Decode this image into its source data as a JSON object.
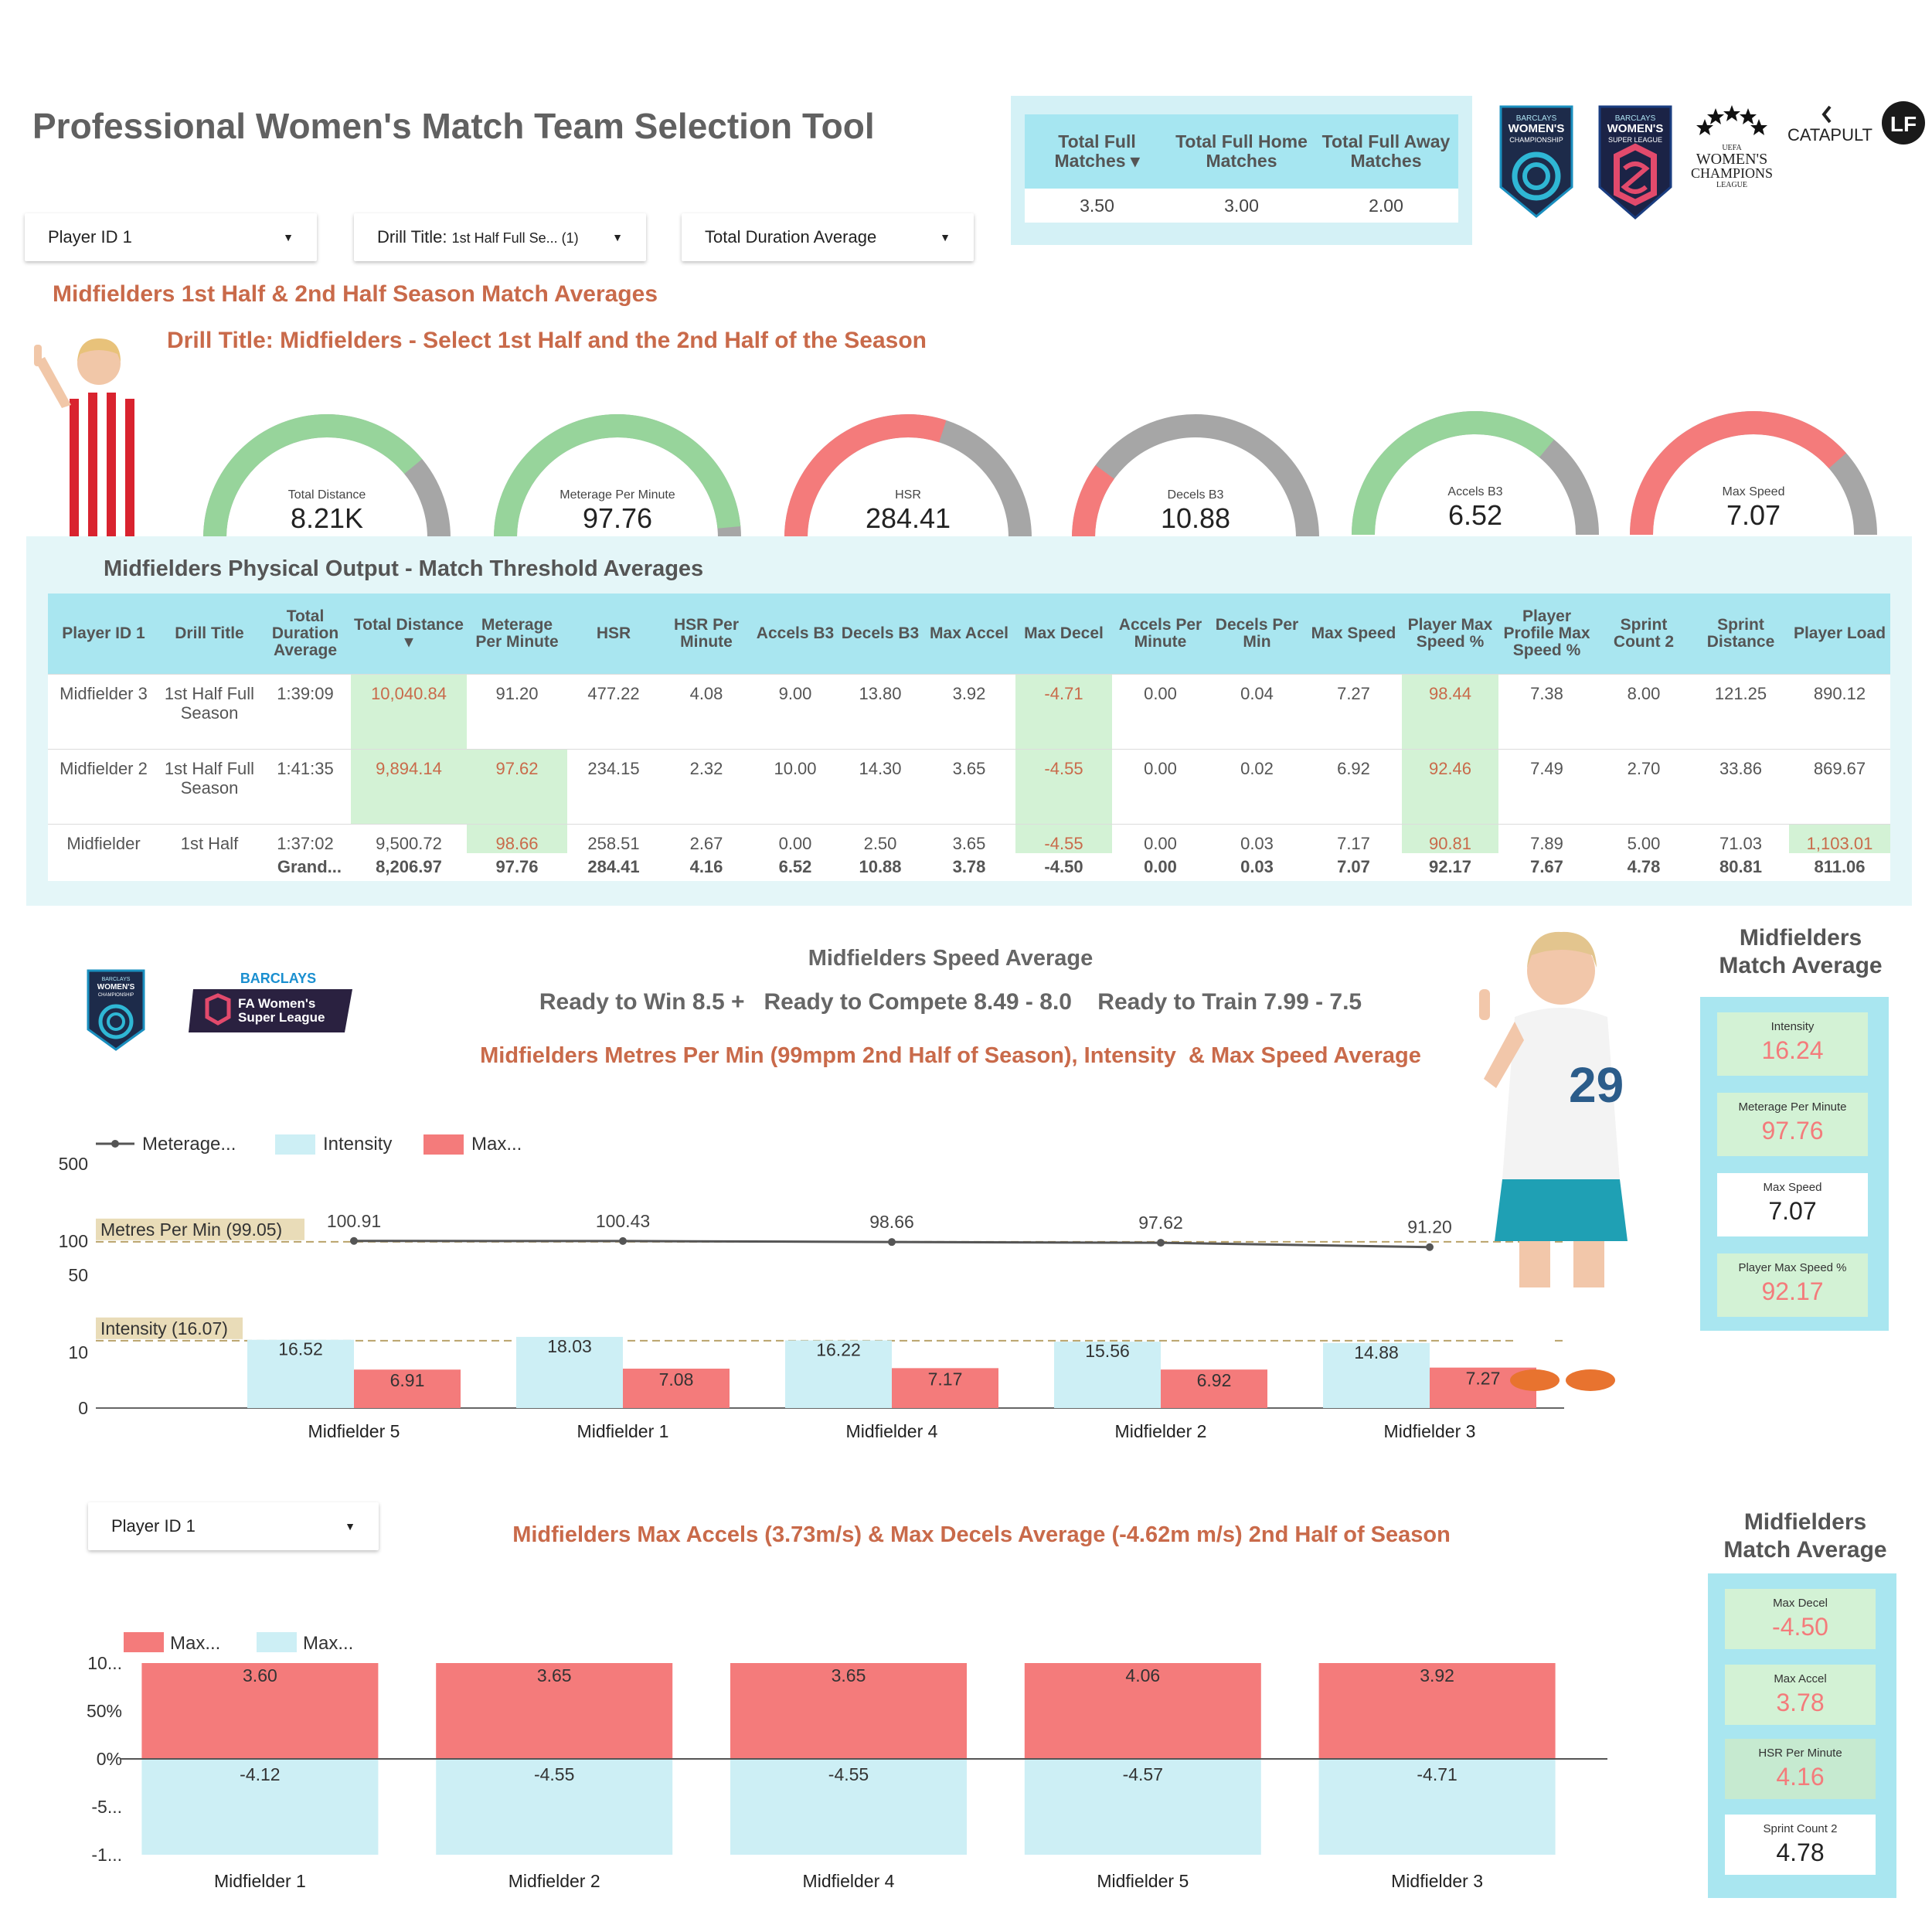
{
  "title": "Professional Women's Match Team Selection Tool",
  "filters": {
    "player": "Player ID 1",
    "drill_label": "Drill Title:",
    "drill_value": "1st Half Full Se... (1)",
    "metric": "Total Duration Average",
    "player2": "Player ID 1"
  },
  "kpis": {
    "headers": [
      "Total Full Matches ▾",
      "Total Full Home Matches",
      "Total Full Away Matches"
    ],
    "values": [
      "3.50",
      "3.00",
      "2.00"
    ]
  },
  "logos": {
    "wc_line1": "BARCLAYS",
    "wc_line2": "WOMEN'S",
    "wc_line3": "CHAMPIONSHIP",
    "wsl_line1": "BARCLAYS",
    "wsl_line2": "WOMEN'S",
    "wsl_line3": "SUPER LEAGUE",
    "ucl_line1": "UEFA",
    "ucl_line2": "WOMEN'S",
    "ucl_line3": "CHAMPIONS",
    "ucl_line4": "LEAGUE",
    "catapult": "CATAPULT",
    "lf": "LF",
    "barclays": "BARCLAYS",
    "fa_line1": "FA Women's",
    "fa_line2": "Super League"
  },
  "section_title": "Midfielders 1st Half & 2nd Half Season Match Averages",
  "drill_title": "Drill Title: Midfielders - Select 1st Half and the 2nd Half of the Season",
  "gauges": [
    {
      "label": "Total Distance",
      "value": "8.21K",
      "fraction": 0.78,
      "color": "#97d49b"
    },
    {
      "label": "Meterage Per Minute",
      "value": "97.76",
      "fraction": 0.97,
      "color": "#97d49b"
    },
    {
      "label": "HSR",
      "value": "284.41",
      "fraction": 0.6,
      "color": "#f47b7b"
    },
    {
      "label": "Decels B3",
      "value": "10.88",
      "fraction": 0.2,
      "color": "#f47b7b"
    },
    {
      "label": "Accels B3",
      "value": "6.52",
      "fraction": 0.72,
      "color": "#97d49b"
    },
    {
      "label": "Max Speed",
      "value": "7.07",
      "fraction": 0.77,
      "color": "#f47b7b"
    }
  ],
  "table": {
    "title": "Midfielders Physical Output - Match Threshold Averages",
    "headers": [
      "Player ID 1",
      "Drill Title",
      "Total Duration Average",
      "Total Distance ▾",
      "Meterage Per Minute",
      "HSR",
      "HSR Per Minute",
      "Accels B3",
      "Decels B3",
      "Max Accel",
      "Max Decel",
      "Accels Per Minute",
      "Decels Per Min",
      "Max Speed",
      "Player Max Speed %",
      "Player Profile Max Speed %",
      "Sprint Count 2",
      "Sprint Distance",
      "Player Load"
    ],
    "rows": [
      [
        "Midfielder 3",
        "1st Half Full Season",
        "1:39:09",
        "10,040.84",
        "91.20",
        "477.22",
        "4.08",
        "9.00",
        "13.80",
        "3.92",
        "-4.71",
        "0.00",
        "0.04",
        "7.27",
        "98.44",
        "7.38",
        "8.00",
        "121.25",
        "890.12"
      ],
      [
        "Midfielder 2",
        "1st Half Full Season",
        "1:41:35",
        "9,894.14",
        "97.62",
        "234.15",
        "2.32",
        "10.00",
        "14.30",
        "3.65",
        "-4.55",
        "0.00",
        "0.02",
        "6.92",
        "92.46",
        "7.49",
        "2.70",
        "33.86",
        "869.67"
      ],
      [
        "Midfielder",
        "1st Half",
        "1:37:02",
        "9,500.72",
        "98.66",
        "258.51",
        "2.67",
        "0.00",
        "2.50",
        "3.65",
        "-4.55",
        "0.00",
        "0.03",
        "7.17",
        "90.81",
        "7.89",
        "5.00",
        "71.03",
        "1,103.01"
      ]
    ],
    "grand_total": [
      "",
      "Grand...",
      "8,206.97",
      "97.76",
      "284.41",
      "4.16",
      "6.52",
      "10.88",
      "3.78",
      "-4.50",
      "0.00",
      "0.03",
      "7.07",
      "92.17",
      "7.67",
      "4.78",
      "80.81",
      "811.06"
    ]
  },
  "speed_section": {
    "title": "Midfielders Speed Average",
    "bands": "Ready to Win 8.5 +   Ready to Compete 8.49 - 8.0    Ready to Train 7.99 - 7.5",
    "subtitle": "Midfielders Metres Per Min (99mpm 2nd Half of Season), Intensity  & Max Speed Average",
    "player_number": "29"
  },
  "side1": {
    "title_line1": "Midfielders",
    "title_line2": "Match Average",
    "cards": [
      {
        "label": "Intensity",
        "value": "16.24"
      },
      {
        "label": "Meterage Per Minute",
        "value": "97.76"
      },
      {
        "label": "Max Speed",
        "value": "7.07"
      },
      {
        "label": "Player Max Speed %",
        "value": "92.17"
      }
    ]
  },
  "accel_section": {
    "title": "Midfielders Max Accels (3.73m/s) & Max Decels Average (-4.62m m/s) 2nd Half of Season"
  },
  "side2": {
    "title_line1": "Midfielders",
    "title_line2": "Match Average",
    "cards": [
      {
        "label": "Max Decel",
        "value": "-4.50"
      },
      {
        "label": "Max Accel",
        "value": "3.78"
      },
      {
        "label": "HSR Per Minute",
        "value": "4.16"
      },
      {
        "label": "Sprint Count 2",
        "value": "4.78"
      }
    ]
  },
  "chart_data": [
    {
      "type": "bar+line",
      "title": "Midfielders Metres Per Min (99mpm 2nd Half of Season), Intensity  & Max Speed Average",
      "categories": [
        "Midfielder 5",
        "Midfielder 1",
        "Midfielder 4",
        "Midfielder 2",
        "Midfielder 3"
      ],
      "series": [
        {
          "name": "Meterage...",
          "kind": "line",
          "values": [
            100.91,
            100.43,
            98.66,
            97.62,
            91.2
          ]
        },
        {
          "name": "Intensity",
          "kind": "bar",
          "values": [
            16.52,
            18.03,
            16.22,
            15.56,
            14.88
          ]
        },
        {
          "name": "Max...",
          "kind": "bar",
          "values": [
            6.91,
            7.08,
            7.17,
            6.92,
            7.27
          ]
        }
      ],
      "y_ticks": [
        "500",
        "100",
        "50",
        "10",
        "0"
      ],
      "reference_lines": [
        {
          "label": "Metres Per Min (99.05)",
          "value": 99.05
        },
        {
          "label": "Intensity (16.07)",
          "value": 16.07
        }
      ]
    },
    {
      "type": "bar",
      "title": "Midfielders Max Accels (3.73m/s) & Max Decels Average (-4.62m m/s) 2nd Half of Season",
      "categories": [
        "Midfielder 1",
        "Midfielder 2",
        "Midfielder 4",
        "Midfielder 5",
        "Midfielder 3"
      ],
      "series": [
        {
          "name": "Max...",
          "values": [
            3.6,
            3.65,
            3.65,
            4.06,
            3.92
          ]
        },
        {
          "name": "Max...",
          "values": [
            -4.12,
            -4.55,
            -4.55,
            -4.57,
            -4.71
          ]
        }
      ],
      "accel_labels": [
        "3.60",
        "3.65",
        "3.65",
        "4.06",
        "3.92"
      ],
      "decel_labels": [
        "-4.12",
        "-4.55",
        "-4.55",
        "-4.57",
        "-4.71"
      ],
      "y_ticks": [
        "10...",
        "50%",
        "0%",
        "-5...",
        "-1..."
      ]
    }
  ]
}
